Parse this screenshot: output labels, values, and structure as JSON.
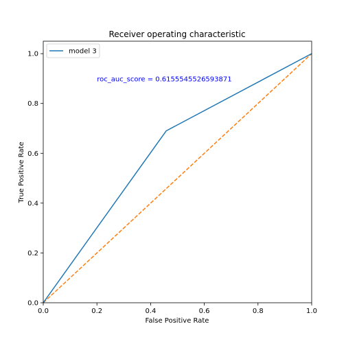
{
  "chart_data": {
    "type": "line",
    "title": "Receiver operating characteristic",
    "xlabel": "False Positive Rate",
    "ylabel": "True Positive Rate",
    "xlim": [
      0,
      1
    ],
    "ylim": [
      0,
      1.05
    ],
    "xticks": [
      0.0,
      0.2,
      0.4,
      0.6,
      0.8,
      1.0
    ],
    "yticks": [
      0.0,
      0.2,
      0.4,
      0.6,
      0.8,
      1.0
    ],
    "xtick_labels": [
      "0.0",
      "0.2",
      "0.4",
      "0.6",
      "0.8",
      "1.0"
    ],
    "ytick_labels": [
      "0.0",
      "0.2",
      "0.4",
      "0.6",
      "0.8",
      "1.0"
    ],
    "grid": false,
    "legend_position": "upper-left",
    "series": [
      {
        "name": "model 3",
        "x": [
          0.0,
          0.458,
          1.0
        ],
        "y": [
          0.0,
          0.69,
          1.0
        ],
        "color": "#1f77b4",
        "style": "solid",
        "in_legend": true
      },
      {
        "x": [
          0.0,
          1.0
        ],
        "y": [
          0.0,
          1.0
        ],
        "color": "#ff7f0e",
        "style": "dashed",
        "in_legend": false
      }
    ],
    "annotations": [
      {
        "text": "roc_auc_score =  0.6155545526593871",
        "x": 0.2,
        "y": 0.9,
        "color": "#0000ff"
      }
    ]
  }
}
